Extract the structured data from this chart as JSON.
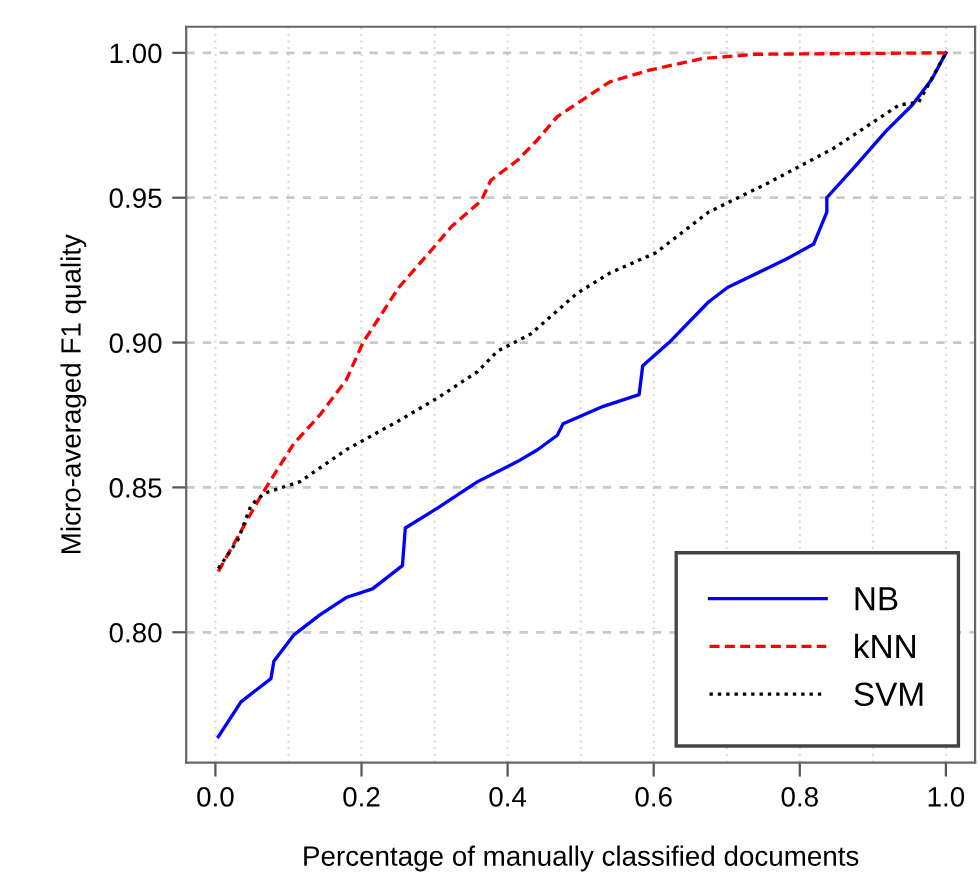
{
  "chart_data": {
    "type": "line",
    "xlabel": "Percentage of manually classified documents",
    "ylabel": "Micro-averaged F1 quality",
    "xlim": [
      -0.04,
      1.04
    ],
    "ylim": [
      0.755,
      1.009
    ],
    "xticks": [
      {
        "value": 0,
        "label": "0.0"
      },
      {
        "value": 0.2,
        "label": "0.2"
      },
      {
        "value": 0.4,
        "label": "0.4"
      },
      {
        "value": 0.6,
        "label": "0.6"
      },
      {
        "value": 0.8,
        "label": "0.8"
      },
      {
        "value": 1.0,
        "label": "1.0"
      }
    ],
    "yticks": [
      {
        "value": 0.8,
        "label": "0.80"
      },
      {
        "value": 0.85,
        "label": "0.85"
      },
      {
        "value": 0.9,
        "label": "0.90"
      },
      {
        "value": 0.95,
        "label": "0.95"
      },
      {
        "value": 1.0,
        "label": "1.00"
      }
    ],
    "grid": true,
    "legend": "bottom right",
    "marker": "none",
    "series": [
      {
        "name": "NB",
        "color": "#0000ff",
        "line_style": "solid",
        "x": [
          0.004,
          0.035,
          0.076,
          0.08,
          0.107,
          0.143,
          0.179,
          0.215,
          0.256,
          0.26,
          0.305,
          0.359,
          0.414,
          0.441,
          0.468,
          0.476,
          0.531,
          0.58,
          0.585,
          0.621,
          0.675,
          0.701,
          0.783,
          0.819,
          0.837,
          0.837,
          0.873,
          0.918,
          0.954,
          0.981,
          1.0
        ],
        "values": [
          0.764,
          0.776,
          0.784,
          0.79,
          0.799,
          0.806,
          0.812,
          0.815,
          0.823,
          0.836,
          0.843,
          0.852,
          0.859,
          0.863,
          0.868,
          0.872,
          0.878,
          0.882,
          0.892,
          0.9,
          0.914,
          0.919,
          0.929,
          0.934,
          0.945,
          0.95,
          0.96,
          0.973,
          0.982,
          0.991,
          1.0
        ]
      },
      {
        "name": "kNN",
        "color": "#ff0000",
        "line_style": "dashed",
        "x": [
          0.004,
          0.053,
          0.067,
          0.107,
          0.143,
          0.179,
          0.202,
          0.251,
          0.296,
          0.323,
          0.364,
          0.377,
          0.414,
          0.441,
          0.468,
          0.486,
          0.54,
          0.594,
          0.666,
          0.74,
          1.0
        ],
        "values": [
          0.821,
          0.843,
          0.849,
          0.865,
          0.875,
          0.887,
          0.9,
          0.919,
          0.932,
          0.94,
          0.949,
          0.956,
          0.963,
          0.97,
          0.978,
          0.981,
          0.99,
          0.994,
          0.998,
          0.9995,
          1.0
        ]
      },
      {
        "name": "SVM",
        "color": "#000000",
        "line_style": "dotted",
        "x": [
          0.004,
          0.031,
          0.049,
          0.067,
          0.116,
          0.179,
          0.251,
          0.305,
          0.359,
          0.386,
          0.432,
          0.441,
          0.468,
          0.495,
          0.54,
          0.603,
          0.675,
          0.756,
          0.846,
          0.936,
          0.963,
          1.0
        ],
        "values": [
          0.822,
          0.832,
          0.844,
          0.848,
          0.852,
          0.863,
          0.873,
          0.881,
          0.89,
          0.897,
          0.903,
          0.905,
          0.911,
          0.917,
          0.924,
          0.931,
          0.945,
          0.955,
          0.967,
          0.982,
          0.983,
          1.0
        ]
      }
    ]
  }
}
